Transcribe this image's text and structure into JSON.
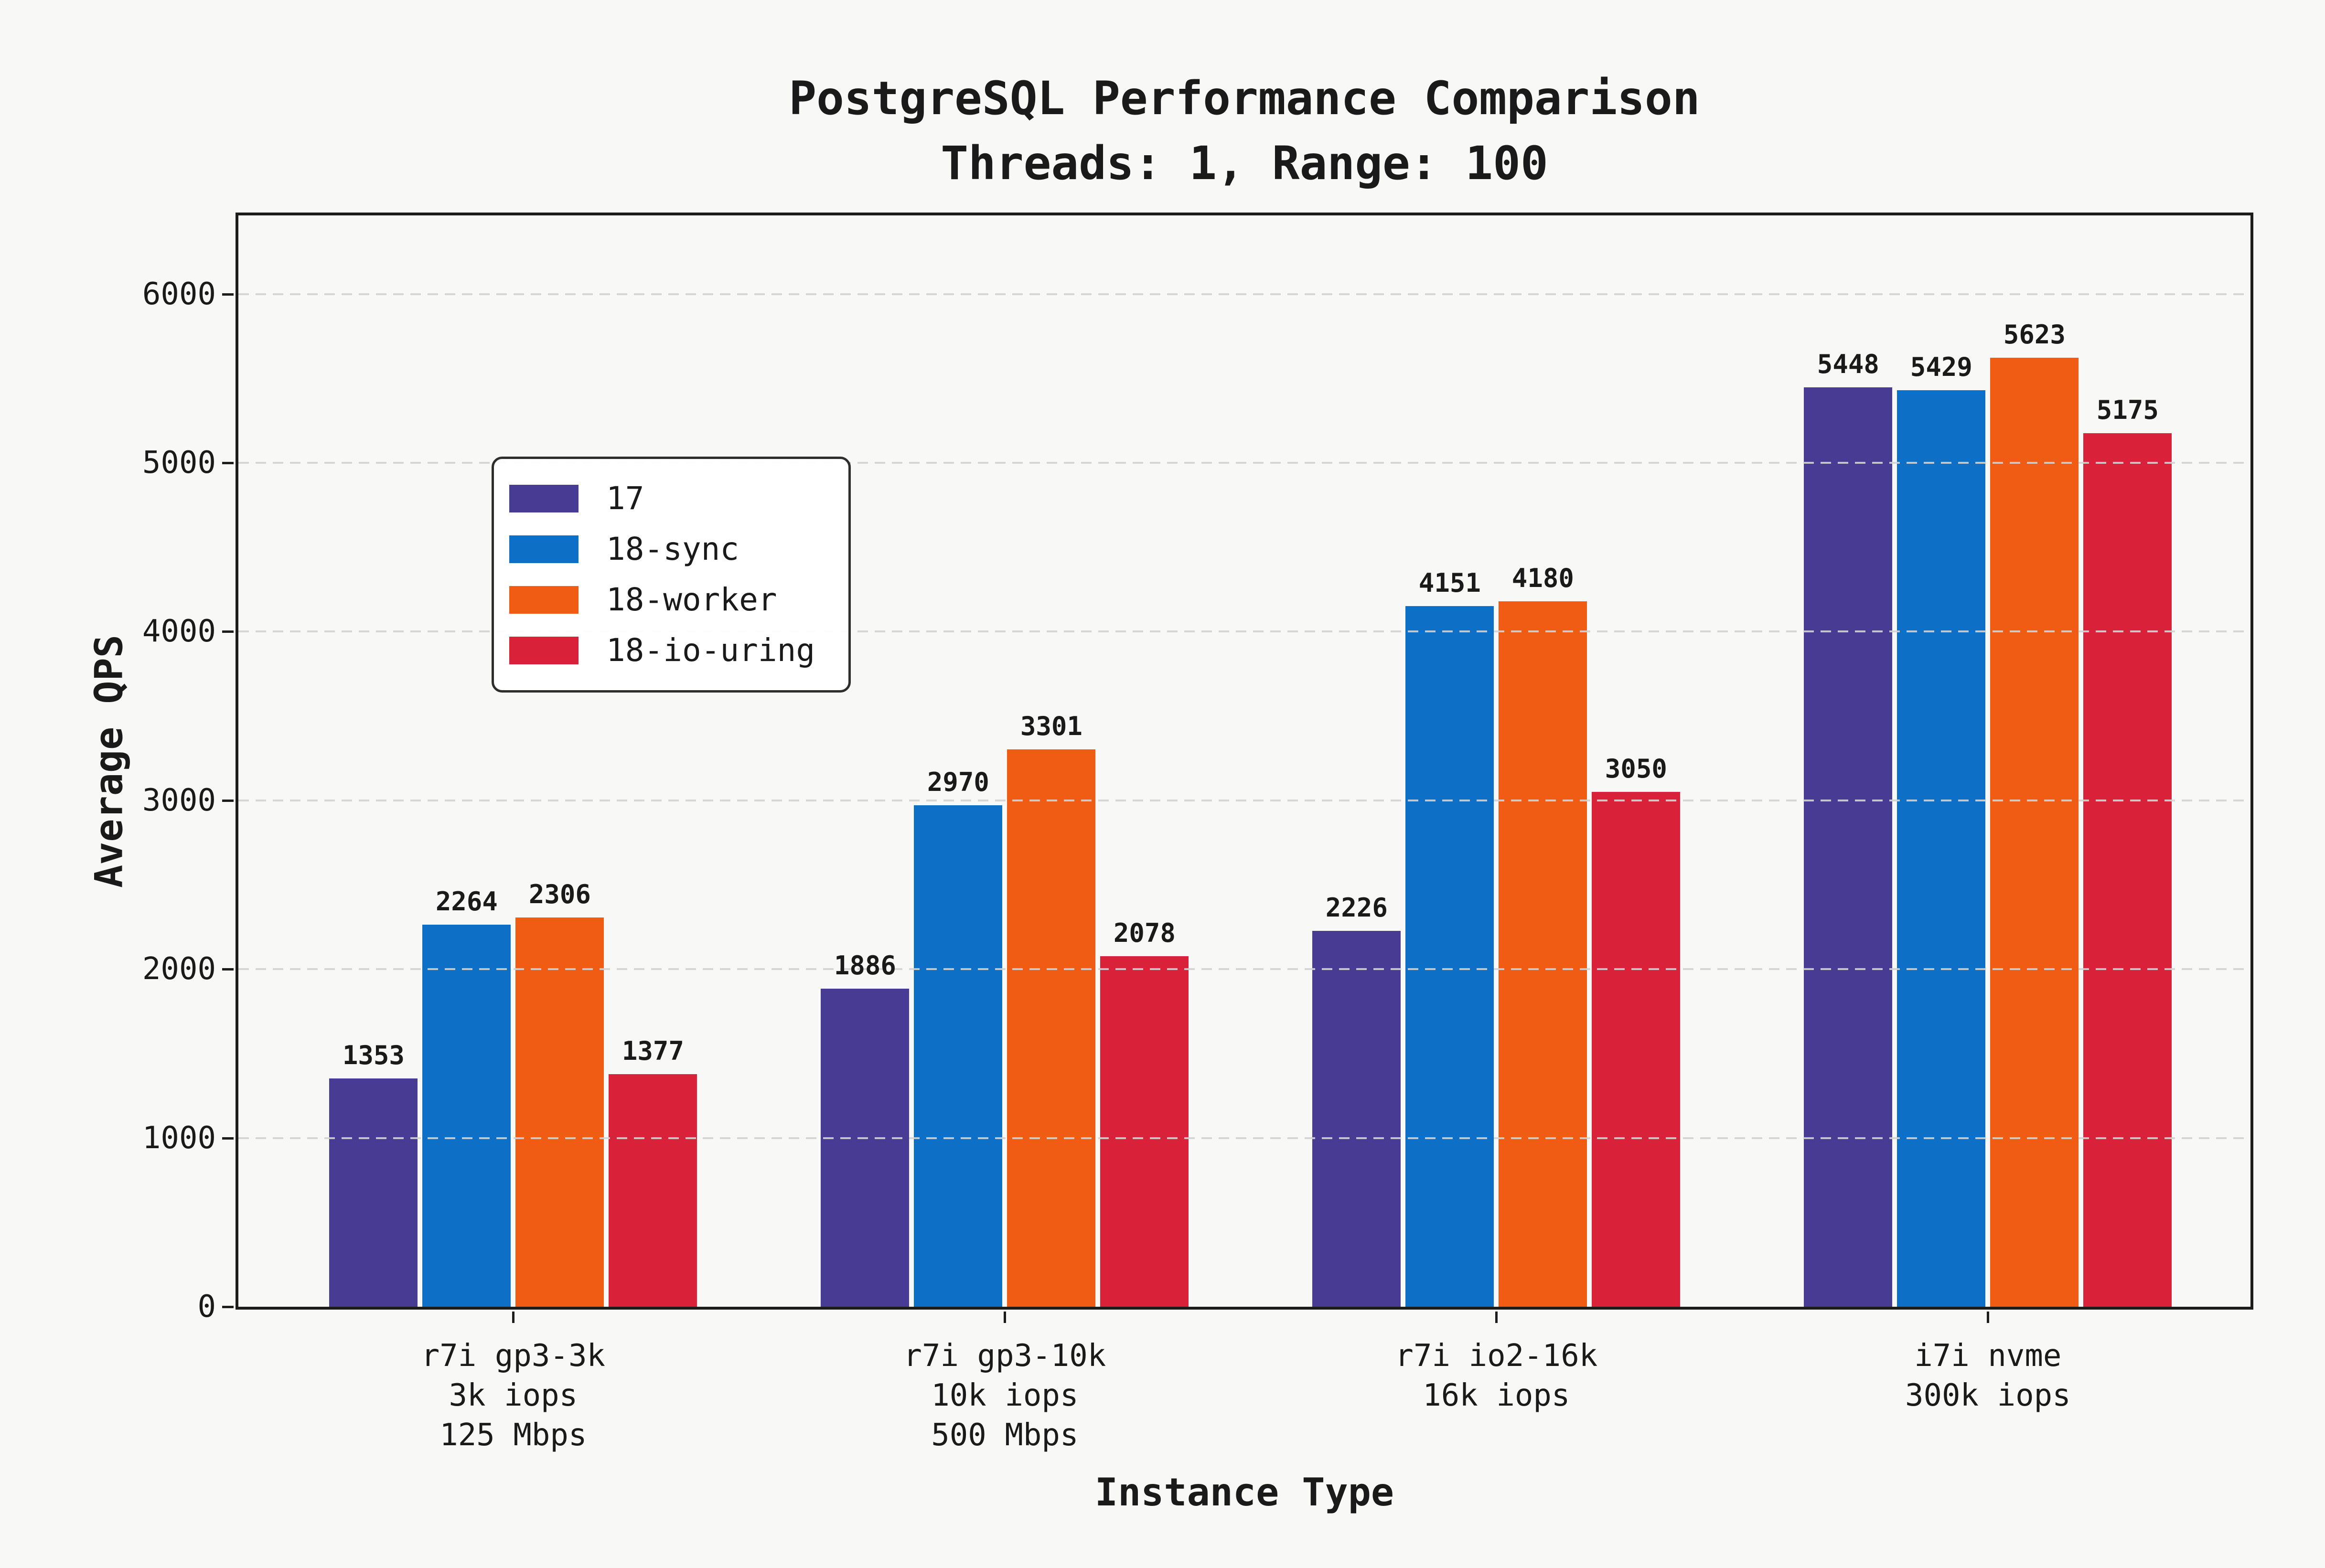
{
  "title": {
    "line1": "PostgreSQL Performance Comparison",
    "line2": "Threads: 1, Range: 100"
  },
  "colors": {
    "background": "#F8F8F6",
    "text": "#1A1A1A",
    "spine": "#1C1C1C",
    "grid": "#D2D2D2",
    "legend_background": "#FFFFFF"
  },
  "chart_data": {
    "type": "bar",
    "title": "PostgreSQL Performance Comparison",
    "subtitle": "Threads: 1, Range: 100",
    "xlabel": "Instance Type",
    "ylabel": "Average QPS",
    "ylim": [
      0,
      6466
    ],
    "y_ticks": [
      0,
      1000,
      2000,
      3000,
      4000,
      5000,
      6000
    ],
    "grid": "horizontal-dashed-above-bars",
    "legend_position": "upper left",
    "categories": [
      "r7i gp3-3k\n3k iops\n125 Mbps",
      "r7i gp3-10k\n10k iops\n500 Mbps",
      "r7i io2-16k\n16k iops",
      "i7i nvme\n300k iops"
    ],
    "categories_lines": [
      [
        "r7i gp3-3k",
        "3k iops",
        "125 Mbps"
      ],
      [
        "r7i gp3-10k",
        "10k iops",
        "500 Mbps"
      ],
      [
        "r7i io2-16k",
        "16k iops"
      ],
      [
        "i7i nvme",
        "300k iops"
      ]
    ],
    "series": [
      {
        "name": "17",
        "color": "#483B93",
        "values": [
          1353,
          1886,
          2226,
          5448
        ]
      },
      {
        "name": "18-sync",
        "color": "#0D6FC5",
        "values": [
          2264,
          2970,
          4151,
          5429
        ]
      },
      {
        "name": "18-worker",
        "color": "#F05C14",
        "values": [
          2306,
          3301,
          4180,
          5623
        ]
      },
      {
        "name": "18-io-uring",
        "color": "#D92239",
        "values": [
          1377,
          2078,
          3050,
          5175
        ]
      }
    ]
  }
}
